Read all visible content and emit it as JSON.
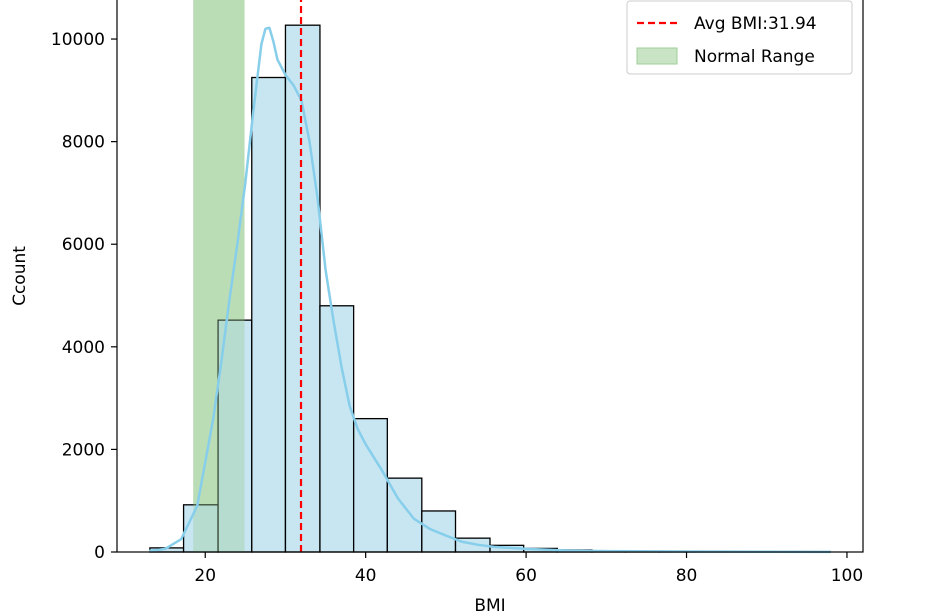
{
  "chart_data": {
    "type": "bar",
    "title": "",
    "xlabel": "BMI",
    "ylabel": "Ccount",
    "xlim": [
      9.0,
      102.0
    ],
    "ylim": [
      0,
      10800
    ],
    "x_ticks": [
      20,
      40,
      60,
      80,
      100
    ],
    "y_ticks": [
      0,
      2000,
      4000,
      6000,
      8000,
      10000
    ],
    "grid": false,
    "legend_position": "top-right",
    "bins": [
      {
        "start": 13.1,
        "end": 17.3,
        "count": 80
      },
      {
        "start": 17.3,
        "end": 21.6,
        "count": 920
      },
      {
        "start": 21.6,
        "end": 25.8,
        "count": 4520
      },
      {
        "start": 25.8,
        "end": 30.0,
        "count": 9250
      },
      {
        "start": 30.0,
        "end": 34.3,
        "count": 10270
      },
      {
        "start": 34.3,
        "end": 38.5,
        "count": 4800
      },
      {
        "start": 38.5,
        "end": 42.7,
        "count": 2600
      },
      {
        "start": 42.7,
        "end": 47.0,
        "count": 1440
      },
      {
        "start": 47.0,
        "end": 51.2,
        "count": 800
      },
      {
        "start": 51.2,
        "end": 55.5,
        "count": 270
      },
      {
        "start": 55.5,
        "end": 59.7,
        "count": 130
      },
      {
        "start": 59.7,
        "end": 63.9,
        "count": 70
      },
      {
        "start": 63.9,
        "end": 68.2,
        "count": 40
      },
      {
        "start": 68.2,
        "end": 72.4,
        "count": 25
      },
      {
        "start": 72.4,
        "end": 76.6,
        "count": 15
      },
      {
        "start": 76.6,
        "end": 80.9,
        "count": 10
      },
      {
        "start": 80.9,
        "end": 85.1,
        "count": 8
      },
      {
        "start": 85.1,
        "end": 89.4,
        "count": 6
      },
      {
        "start": 89.4,
        "end": 93.6,
        "count": 4
      },
      {
        "start": 93.6,
        "end": 97.9,
        "count": 3
      }
    ],
    "kde": {
      "x": [
        13,
        15,
        17,
        19,
        21,
        22,
        23,
        24,
        25,
        26,
        27,
        27.5,
        28,
        28.5,
        29,
        30,
        31,
        32,
        33,
        34,
        35,
        36,
        37,
        38,
        39,
        40,
        42,
        44,
        46,
        48,
        50,
        52,
        54,
        56,
        60,
        65,
        70,
        80,
        90,
        98
      ],
      "y": [
        20,
        60,
        250,
        900,
        2600,
        3700,
        4900,
        6000,
        7200,
        8600,
        9900,
        10200,
        10220,
        9950,
        9600,
        9300,
        9100,
        8800,
        8000,
        6900,
        5500,
        4500,
        3600,
        2850,
        2400,
        2100,
        1600,
        1050,
        650,
        450,
        320,
        200,
        140,
        100,
        60,
        30,
        18,
        10,
        5,
        2
      ]
    },
    "normal_range": {
      "start": 18.5,
      "end": 24.9
    },
    "average": 31.94,
    "legend": [
      {
        "label": "Avg BMI:31.94",
        "style": "dashed-line",
        "color": "#ff0000"
      },
      {
        "label": "Normal Range",
        "style": "patch",
        "color": "#c9e3c5"
      }
    ],
    "colors": {
      "bar_fill": "#c2e3f1",
      "bar_stroke": "#000000",
      "kde": "#87ceeb",
      "normal_fill": "#9fcf97",
      "normal_legend": "#c9e3c5",
      "avg_line": "#ff0000"
    }
  }
}
